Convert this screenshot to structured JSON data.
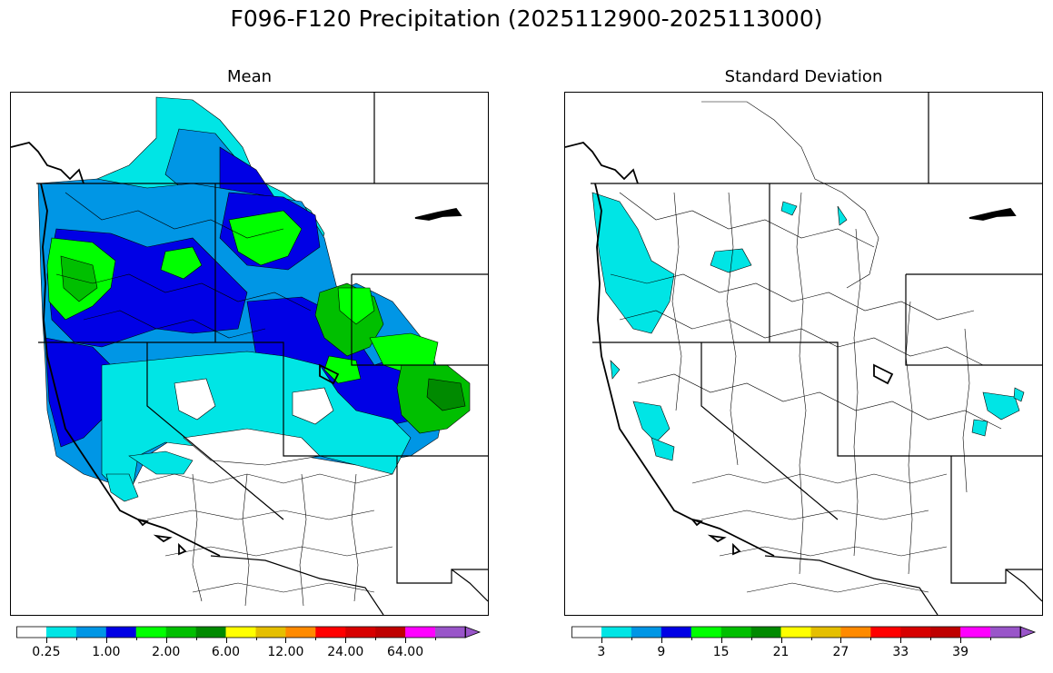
{
  "figure": {
    "title": "F096-F120 Precipitation (2025112900-2025113000)"
  },
  "panels": [
    {
      "title": "Mean",
      "colorbar": {
        "colors": [
          "#ffffff",
          "#00e5e5",
          "#0096e5",
          "#0000e5",
          "#00ff00",
          "#00bf00",
          "#008a00",
          "#ffff00",
          "#e5bf00",
          "#ff8a00",
          "#ff0000",
          "#d70000",
          "#bf0000",
          "#ff00ff",
          "#9955c9"
        ],
        "extend_color": "#9955c9",
        "tick_labels": [
          "0.25",
          "1.00",
          "2.00",
          "6.00",
          "12.00",
          "24.00",
          "64.00"
        ]
      }
    },
    {
      "title": "Standard Deviation",
      "colorbar": {
        "colors": [
          "#ffffff",
          "#00e5e5",
          "#0096e5",
          "#0000e5",
          "#00ff00",
          "#00bf00",
          "#008a00",
          "#ffff00",
          "#e5bf00",
          "#ff8a00",
          "#ff0000",
          "#d70000",
          "#bf0000",
          "#ff00ff",
          "#9955c9"
        ],
        "extend_color": "#9955c9",
        "tick_labels": [
          "3",
          "9",
          "15",
          "21",
          "27",
          "33",
          "39"
        ]
      }
    }
  ]
}
